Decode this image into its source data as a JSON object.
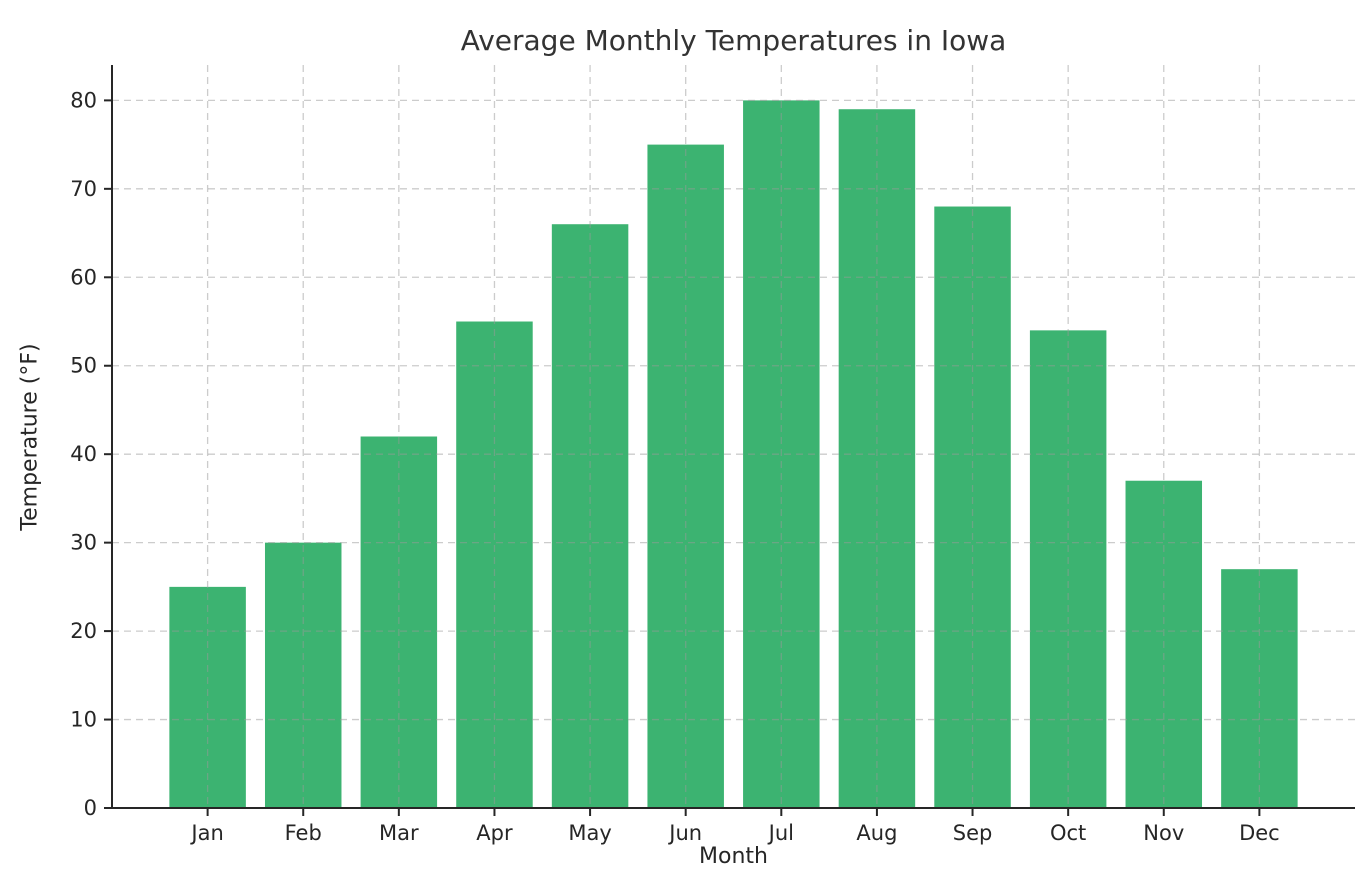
{
  "chart_data": {
    "type": "bar",
    "title": "Average Monthly Temperatures in Iowa",
    "xlabel": "Month",
    "ylabel": "Temperature (°F)",
    "categories": [
      "Jan",
      "Feb",
      "Mar",
      "Apr",
      "May",
      "Jun",
      "Jul",
      "Aug",
      "Sep",
      "Oct",
      "Nov",
      "Dec"
    ],
    "values": [
      25,
      30,
      42,
      55,
      66,
      75,
      80,
      79,
      68,
      54,
      37,
      27
    ],
    "yticks": [
      0,
      10,
      20,
      30,
      40,
      50,
      60,
      70,
      80
    ],
    "ylim": [
      0,
      84
    ],
    "grid": true,
    "legend": "none",
    "colors": {
      "bar": "#3CB371",
      "grid": "#999999",
      "spine": "#262626",
      "tick_label": "#262626",
      "title": "#333333",
      "background": "#ffffff"
    }
  }
}
